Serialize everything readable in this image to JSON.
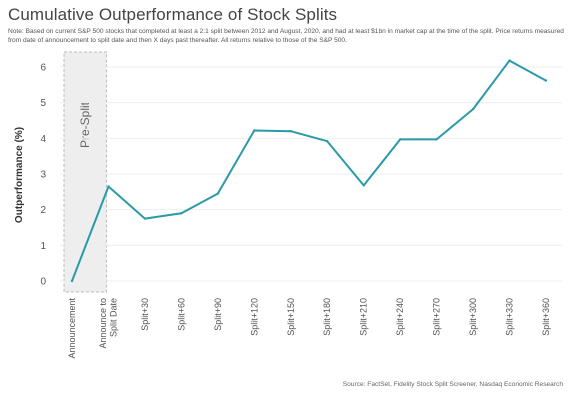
{
  "title": "Cumulative Outperformance of Stock Splits",
  "note": "Note: Based on current S&P 500 stocks that completed at least a 2:1 split between 2012 and August, 2020, and had at least $1bn in market cap at the time of the split. Price returns measured from date of announcement to split date and then X days past thereafter. All returns relative to those of the S&P 500.",
  "source": "Source: FactSet, Fidelity Stock Split Screener, Nasdaq Economic Research",
  "colors": {
    "line": "#2a9aa9",
    "shade": "#eeeeee",
    "grid": "#eeeeee"
  },
  "chart_data": {
    "type": "line",
    "title": "Cumulative Outperformance of Stock Splits",
    "ylabel": "Outperformance (%)",
    "xlabel": "",
    "ylim": [
      0,
      6.5
    ],
    "yticks": [
      0,
      1,
      2,
      3,
      4,
      5,
      6
    ],
    "grid": true,
    "shaded_region": {
      "label": "Pre-Split",
      "from_category": "Announcement",
      "to_category": "Announce to Split Date"
    },
    "categories": [
      [
        "Announcement"
      ],
      [
        "Announce to",
        "Split Date"
      ],
      [
        "Split+30"
      ],
      [
        "Split+60"
      ],
      [
        "Split+90"
      ],
      [
        "Split+120"
      ],
      [
        "Split+150"
      ],
      [
        "Split+180"
      ],
      [
        "Split+210"
      ],
      [
        "Split+240"
      ],
      [
        "Split+270"
      ],
      [
        "Split+300"
      ],
      [
        "Split+330"
      ],
      [
        "Split+360"
      ]
    ],
    "series": [
      {
        "values": [
          0,
          2.65,
          1.75,
          1.9,
          2.45,
          4.22,
          4.2,
          3.92,
          2.68,
          3.97,
          3.97,
          4.82,
          6.18,
          5.62
        ]
      }
    ]
  }
}
